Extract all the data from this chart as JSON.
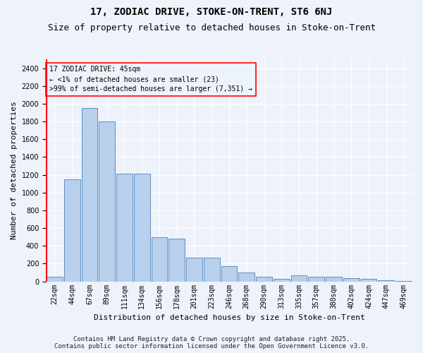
{
  "title": "17, ZODIAC DRIVE, STOKE-ON-TRENT, ST6 6NJ",
  "subtitle": "Size of property relative to detached houses in Stoke-on-Trent",
  "xlabel": "Distribution of detached houses by size in Stoke-on-Trent",
  "ylabel": "Number of detached properties",
  "categories": [
    "22sqm",
    "44sqm",
    "67sqm",
    "89sqm",
    "111sqm",
    "134sqm",
    "156sqm",
    "178sqm",
    "201sqm",
    "223sqm",
    "246sqm",
    "268sqm",
    "290sqm",
    "313sqm",
    "335sqm",
    "357sqm",
    "380sqm",
    "402sqm",
    "424sqm",
    "447sqm",
    "469sqm"
  ],
  "values": [
    50,
    1150,
    1950,
    1800,
    1210,
    1210,
    500,
    480,
    270,
    265,
    170,
    100,
    50,
    30,
    70,
    55,
    55,
    40,
    25,
    15,
    8
  ],
  "bar_color": "#b8d0eb",
  "bar_edge_color": "#5b8ec4",
  "ylim": [
    0,
    2500
  ],
  "yticks": [
    0,
    200,
    400,
    600,
    800,
    1000,
    1200,
    1400,
    1600,
    1800,
    2000,
    2200,
    2400
  ],
  "annotation_text_line1": "17 ZODIAC DRIVE: 45sqm",
  "annotation_text_line2": "← <1% of detached houses are smaller (23)",
  "annotation_text_line3": ">99% of semi-detached houses are larger (7,351) →",
  "vertical_line_x": 0,
  "background_color": "#eef2fb",
  "grid_color": "#ffffff",
  "footer_line1": "Contains HM Land Registry data © Crown copyright and database right 2025.",
  "footer_line2": "Contains public sector information licensed under the Open Government Licence v3.0.",
  "title_fontsize": 10,
  "subtitle_fontsize": 9,
  "axis_label_fontsize": 8,
  "tick_fontsize": 7,
  "annotation_fontsize": 7,
  "footer_fontsize": 6.5
}
